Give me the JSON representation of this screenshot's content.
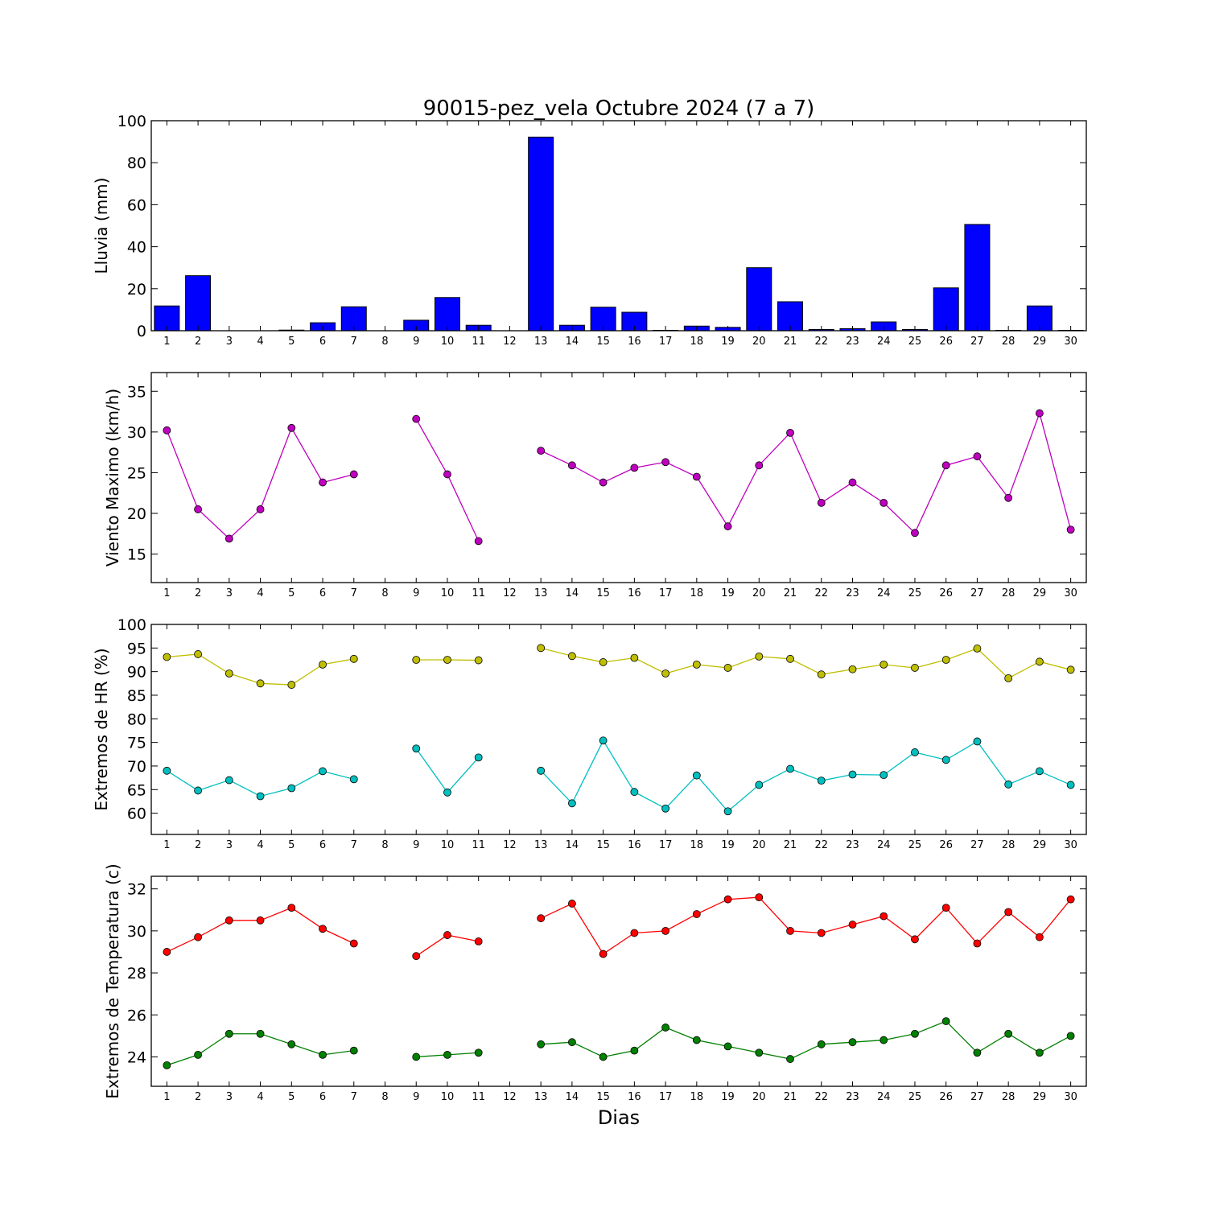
{
  "title": "90015-pez_vela Octubre 2024  (7 a 7)",
  "xlabel": "Dias",
  "colors": {
    "rain": "#0000ff",
    "wind": "#bf00bf",
    "hr_max": "#bfbf00",
    "hr_min": "#00bfbf",
    "temp_max": "#ff0000",
    "temp_min": "#008000"
  },
  "chart_data": [
    {
      "type": "bar",
      "ylabel": "Lluvia (mm)",
      "ylim": [
        0,
        100
      ],
      "yticks": [
        0,
        20,
        40,
        60,
        80,
        100
      ],
      "categories": [
        1,
        2,
        3,
        4,
        5,
        6,
        7,
        8,
        9,
        10,
        11,
        12,
        13,
        14,
        15,
        16,
        17,
        18,
        19,
        20,
        21,
        22,
        23,
        24,
        25,
        26,
        27,
        28,
        29,
        30
      ],
      "values": [
        11.8,
        26.2,
        0,
        0,
        0.3,
        3.8,
        11.4,
        0,
        5,
        15.8,
        2.6,
        0,
        92.2,
        2.6,
        11.2,
        8.8,
        0.2,
        2.2,
        1.6,
        30,
        13.8,
        0.6,
        1,
        4.2,
        0.6,
        20.4,
        50.6,
        0.2,
        11.8,
        0.2
      ]
    },
    {
      "type": "line",
      "ylabel": "Viento Maximo (km/h)",
      "ylim": [
        11.5,
        37.3
      ],
      "yticks": [
        15,
        20,
        25,
        30,
        35
      ],
      "x": [
        1,
        2,
        3,
        4,
        5,
        6,
        7,
        8,
        9,
        10,
        11,
        12,
        13,
        14,
        15,
        16,
        17,
        18,
        19,
        20,
        21,
        22,
        23,
        24,
        25,
        26,
        27,
        28,
        29,
        30
      ],
      "series": [
        {
          "values": [
            30.2,
            20.5,
            16.9,
            20.5,
            30.5,
            23.8,
            24.8,
            null,
            31.6,
            24.8,
            16.6,
            null,
            27.7,
            25.9,
            23.8,
            25.6,
            26.3,
            24.5,
            18.4,
            25.9,
            29.9,
            21.3,
            23.8,
            21.3,
            17.6,
            25.9,
            27,
            21.9,
            32.3,
            18
          ]
        }
      ]
    },
    {
      "type": "line",
      "ylabel": "Extremos de HR (%)",
      "ylim": [
        55.5,
        100
      ],
      "yticks": [
        60,
        65,
        70,
        75,
        80,
        85,
        90,
        95,
        100
      ],
      "x": [
        1,
        2,
        3,
        4,
        5,
        6,
        7,
        8,
        9,
        10,
        11,
        12,
        13,
        14,
        15,
        16,
        17,
        18,
        19,
        20,
        21,
        22,
        23,
        24,
        25,
        26,
        27,
        28,
        29,
        30
      ],
      "series": [
        {
          "values": [
            93.1,
            93.7,
            89.6,
            87.5,
            87.2,
            91.5,
            92.7,
            null,
            92.5,
            92.5,
            92.4,
            null,
            95,
            93.3,
            92,
            92.9,
            89.6,
            91.5,
            90.8,
            93.2,
            92.7,
            89.4,
            90.5,
            91.5,
            90.8,
            92.5,
            94.9,
            88.6,
            92.1,
            90.4
          ]
        },
        {
          "values": [
            69,
            64.8,
            67,
            63.6,
            65.3,
            68.9,
            67.2,
            null,
            73.7,
            64.4,
            71.8,
            null,
            69,
            62.1,
            75.4,
            64.5,
            61,
            68,
            60.4,
            66,
            69.4,
            66.9,
            68.2,
            68.1,
            72.9,
            71.3,
            75.2,
            66.1,
            68.9,
            66
          ]
        }
      ]
    },
    {
      "type": "line",
      "ylabel": "Extremos de Temperatura (c)",
      "ylim": [
        22.6,
        32.6
      ],
      "yticks": [
        24,
        26,
        28,
        30,
        32
      ],
      "x": [
        1,
        2,
        3,
        4,
        5,
        6,
        7,
        8,
        9,
        10,
        11,
        12,
        13,
        14,
        15,
        16,
        17,
        18,
        19,
        20,
        21,
        22,
        23,
        24,
        25,
        26,
        27,
        28,
        29,
        30
      ],
      "series": [
        {
          "values": [
            29,
            29.7,
            30.5,
            30.5,
            31.1,
            30.1,
            29.4,
            null,
            28.8,
            29.8,
            29.5,
            null,
            30.6,
            31.3,
            28.9,
            29.9,
            30,
            30.8,
            31.5,
            31.6,
            30,
            29.9,
            30.3,
            30.7,
            29.6,
            31.1,
            29.4,
            30.9,
            29.7,
            31.5
          ]
        },
        {
          "values": [
            23.6,
            24.1,
            25.1,
            25.1,
            24.6,
            24.1,
            24.3,
            null,
            24,
            24.1,
            24.2,
            null,
            24.6,
            24.7,
            24,
            24.3,
            25.4,
            24.8,
            24.5,
            24.2,
            23.9,
            24.6,
            24.7,
            24.8,
            25.1,
            25.7,
            24.2,
            25.1,
            24.2,
            25
          ]
        }
      ]
    }
  ]
}
